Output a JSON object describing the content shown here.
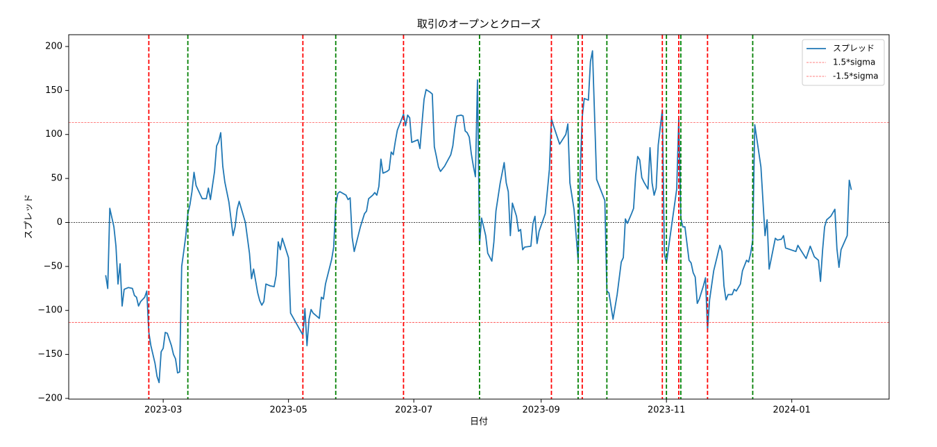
{
  "chart_data": {
    "type": "line",
    "title": "取引のオープンとクローズ",
    "xlabel": "日付",
    "ylabel": "スプレッド",
    "x": [
      31,
      32,
      33,
      35,
      36,
      37,
      38,
      39,
      40,
      42,
      44,
      45,
      46,
      47,
      48,
      50,
      51,
      52,
      53,
      55,
      56,
      57,
      58,
      59,
      60,
      61,
      63,
      64,
      65,
      66,
      67,
      68,
      69,
      70,
      71,
      72,
      73,
      74,
      75,
      76,
      78,
      80,
      81,
      82,
      84,
      85,
      86,
      87,
      88,
      89,
      91,
      93,
      94,
      95,
      96,
      99,
      101,
      102,
      103,
      105,
      106,
      107,
      108,
      109,
      111,
      113,
      114,
      115,
      116,
      117,
      120,
      121,
      127,
      128,
      129,
      130,
      131,
      132,
      135,
      136,
      137,
      138,
      141,
      142,
      143,
      144,
      145,
      148,
      149,
      150,
      151,
      152,
      155,
      157,
      158,
      159,
      161,
      162,
      163,
      164,
      165,
      166,
      168,
      169,
      170,
      171,
      172,
      173,
      175,
      176,
      177,
      178,
      179,
      180,
      182,
      183,
      184,
      185,
      186,
      187,
      189,
      190,
      191,
      192,
      193,
      194,
      196,
      199,
      200,
      201,
      202,
      204,
      205,
      206,
      207,
      208,
      209,
      210,
      211,
      212,
      213,
      214,
      215,
      216,
      217,
      219,
      220,
      221,
      223,
      225,
      226,
      227,
      228,
      229,
      231,
      232,
      233,
      234,
      235,
      238,
      239,
      240,
      241,
      242,
      245,
      247,
      248,
      249,
      252,
      255,
      256,
      257,
      259,
      261,
      262,
      263,
      264,
      266,
      267,
      268,
      270,
      274,
      275,
      276,
      278,
      280,
      282,
      283,
      284,
      285,
      287,
      288,
      289,
      290,
      291,
      292,
      293,
      295,
      296,
      297,
      298,
      299,
      300,
      302,
      303,
      304,
      305,
      309,
      310,
      311,
      312,
      313,
      315,
      316,
      317,
      318,
      319,
      320,
      322,
      323,
      324,
      325,
      327,
      330,
      331,
      332,
      333,
      334,
      336,
      337,
      338,
      340,
      341,
      343,
      344,
      345,
      346,
      347,
      350,
      352,
      353,
      354,
      357,
      358,
      360,
      361,
      362,
      367,
      368,
      369,
      372,
      374,
      376,
      378,
      379,
      380,
      381,
      382,
      384,
      385,
      386,
      387,
      388,
      389,
      392,
      393,
      394
    ],
    "series": [
      {
        "name": "スプレッド",
        "color": "#1f77b4",
        "values": [
          -60,
          -75,
          16,
          -5,
          -27,
          -70,
          -47,
          -95,
          -76,
          -74,
          -75,
          -83,
          -85,
          -95,
          -90,
          -85,
          -78,
          -125,
          -140,
          -160,
          -175,
          -182,
          -147,
          -143,
          -125,
          -126,
          -140,
          -150,
          -155,
          -171,
          -170,
          -50,
          -33,
          -15,
          10,
          20,
          35,
          57,
          42,
          37,
          27,
          27,
          39,
          26,
          58,
          87,
          92,
          102,
          64,
          46,
          23,
          -15,
          -5,
          15,
          24,
          0,
          -35,
          -64,
          -53,
          -80,
          -89,
          -94,
          -90,
          -70,
          -72,
          -73,
          -60,
          -22,
          -31,
          -18,
          -40,
          -103,
          -128,
          -98,
          -140,
          -110,
          -99,
          -103,
          -109,
          -85,
          -87,
          -70,
          -42,
          -28,
          20,
          33,
          35,
          31,
          26,
          28,
          -17,
          -33,
          -5,
          10,
          13,
          27,
          31,
          34,
          31,
          41,
          72,
          56,
          58,
          60,
          80,
          77,
          92,
          105,
          117,
          123,
          110,
          122,
          119,
          91,
          93,
          94,
          84,
          113,
          140,
          151,
          148,
          146,
          86,
          75,
          63,
          58,
          64,
          77,
          87,
          107,
          121,
          122,
          121,
          104,
          102,
          97,
          78,
          64,
          52,
          162,
          -25,
          5,
          -5,
          -15,
          -35,
          -44,
          -22,
          13,
          44,
          68,
          45,
          35,
          -15,
          22,
          7,
          -10,
          -8,
          -31,
          -28,
          -27,
          -1,
          7,
          -24,
          -10,
          10,
          60,
          118,
          110,
          89,
          100,
          112,
          45,
          15,
          -43,
          57,
          120,
          141,
          139,
          183,
          195,
          49,
          25,
          -78,
          -80,
          -110,
          -82,
          -45,
          -40,
          4,
          -1,
          10,
          16,
          53,
          75,
          71,
          51,
          46,
          38,
          85,
          45,
          31,
          39,
          88,
          128,
          -36,
          -46,
          -29,
          38,
          118,
          5,
          -5,
          -5,
          -43,
          -46,
          -57,
          -62,
          -92,
          -87,
          -72,
          -63,
          -122,
          -88,
          -55,
          -26,
          -33,
          -72,
          -88,
          -82,
          -82,
          -76,
          -78,
          -70,
          -55,
          -43,
          -45,
          -35,
          -20,
          111,
          63,
          -15,
          3,
          -53,
          -18,
          -20,
          -19,
          -15,
          -29,
          -33,
          -26,
          -30,
          -41,
          -27,
          -39,
          -43,
          -67,
          -32,
          -5,
          3,
          7,
          11,
          15,
          -30,
          -51,
          -31,
          -15,
          48,
          37
        ]
      },
      {
        "name": "1.5*sigma",
        "color": "red",
        "value": 113.5
      },
      {
        "name": "-1.5*sigma",
        "color": "red",
        "value": -113.5
      }
    ],
    "hlines": [
      {
        "value": 0,
        "color": "black"
      }
    ],
    "vlines": [
      {
        "color": "red",
        "x": [
          52,
          127,
          176,
          248,
          263,
          302,
          310,
          324
        ]
      },
      {
        "color": "green",
        "x": [
          71,
          143,
          213,
          261,
          275,
          304,
          311,
          346
        ]
      }
    ],
    "xlim": [
      13,
      412.4
    ],
    "xticks": [
      {
        "value": 59,
        "label": "2023-03"
      },
      {
        "value": 120,
        "label": "2023-05"
      },
      {
        "value": 181,
        "label": "2023-07"
      },
      {
        "value": 243,
        "label": "2023-09"
      },
      {
        "value": 304,
        "label": "2023-11"
      },
      {
        "value": 365,
        "label": "2024-01"
      }
    ],
    "ylim": [
      -200.8,
      213.4
    ],
    "yticks": [
      {
        "value": -200,
        "label": "−200"
      },
      {
        "value": -150,
        "label": "−150"
      },
      {
        "value": -100,
        "label": "−100"
      },
      {
        "value": -50,
        "label": "−50"
      },
      0,
      50,
      100,
      150,
      200
    ],
    "legend": "upper right"
  }
}
